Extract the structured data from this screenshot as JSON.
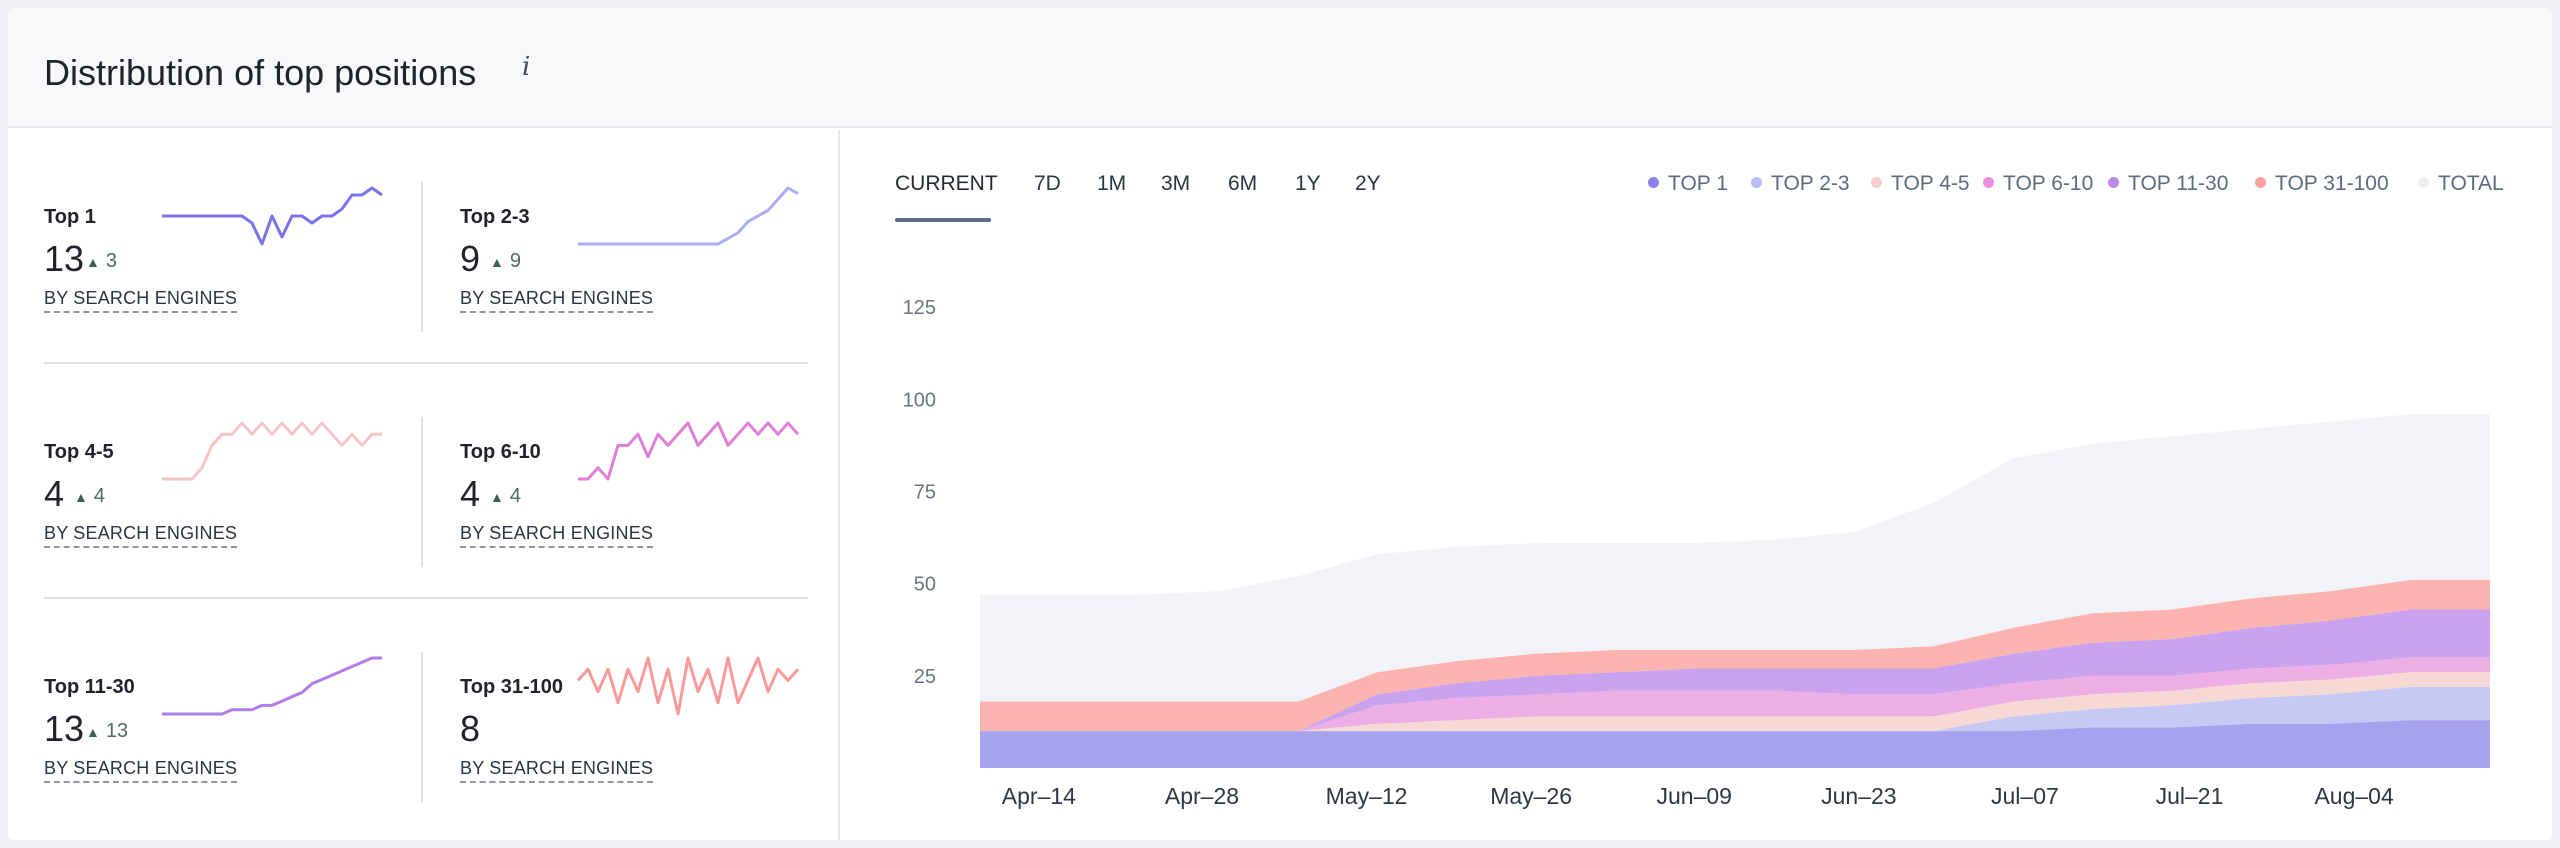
{
  "header": {
    "title": "Distribution of top positions",
    "info_symbol": "i"
  },
  "metrics": [
    {
      "name": "Top 1",
      "value": "13",
      "delta": "3",
      "has_delta": true,
      "link": "BY SEARCH ENGINES",
      "color": "#7b73e6"
    },
    {
      "name": "Top 2-3",
      "value": "9",
      "delta": "9",
      "has_delta": true,
      "link": "BY SEARCH ENGINES",
      "color": "#a8aef0"
    },
    {
      "name": "Top 4-5",
      "value": "4",
      "delta": "4",
      "has_delta": true,
      "link": "BY SEARCH ENGINES",
      "color": "#f5c4c4"
    },
    {
      "name": "Top 6-10",
      "value": "4",
      "delta": "4",
      "has_delta": true,
      "link": "BY SEARCH ENGINES",
      "color": "#e07fd6"
    },
    {
      "name": "Top 11-30",
      "value": "13",
      "delta": "13",
      "has_delta": true,
      "link": "BY SEARCH ENGINES",
      "color": "#b07ce6"
    },
    {
      "name": "Top 31-100",
      "value": "8",
      "delta": "",
      "has_delta": false,
      "link": "BY SEARCH ENGINES",
      "color": "#f79a9a"
    }
  ],
  "tabs": [
    {
      "label": "CURRENT",
      "active": true
    },
    {
      "label": "7D",
      "active": false
    },
    {
      "label": "1M",
      "active": false
    },
    {
      "label": "3M",
      "active": false
    },
    {
      "label": "6M",
      "active": false
    },
    {
      "label": "1Y",
      "active": false
    },
    {
      "label": "2Y",
      "active": false
    }
  ],
  "legend": [
    {
      "label": "TOP 1",
      "color": "#8a84ea"
    },
    {
      "label": "TOP 2-3",
      "color": "#b7bcf2"
    },
    {
      "label": "TOP 4-5",
      "color": "#f6d0cc"
    },
    {
      "label": "TOP 6-10",
      "color": "#e890dc"
    },
    {
      "label": "TOP 11-30",
      "color": "#bb8ae8"
    },
    {
      "label": "TOP 31-100",
      "color": "#f8a3a0"
    },
    {
      "label": "TOTAL",
      "color": "#eceef4"
    }
  ],
  "chart_data": {
    "type": "area",
    "stacked": true,
    "yticks": [
      25,
      50,
      75,
      100,
      125
    ],
    "ylim": [
      0,
      125
    ],
    "xlabels": [
      "Apr–14",
      "Apr–28",
      "May–12",
      "May–26",
      "Jun–09",
      "Jun–23",
      "Jul–07",
      "Jul–21",
      "Aug–04"
    ],
    "x": [
      "Apr-07",
      "Apr-14",
      "Apr-21",
      "Apr-28",
      "May-05",
      "May-12",
      "May-19",
      "May-26",
      "Jun-02",
      "Jun-09",
      "Jun-16",
      "Jun-23",
      "Jun-30",
      "Jul-07",
      "Jul-14",
      "Jul-21",
      "Jul-28",
      "Aug-04",
      "Aug-11",
      "Aug-18"
    ],
    "series": [
      {
        "name": "TOP 1",
        "color": "#a7a2f0",
        "values": [
          10,
          10,
          10,
          10,
          10,
          10,
          10,
          10,
          10,
          10,
          10,
          10,
          10,
          10,
          11,
          11,
          12,
          12,
          13,
          13
        ]
      },
      {
        "name": "TOP 2-3",
        "color": "#c5c9f4",
        "values": [
          0,
          0,
          0,
          0,
          0,
          0,
          0,
          0,
          0,
          0,
          0,
          0,
          0,
          4,
          5,
          6,
          7,
          8,
          9,
          9
        ]
      },
      {
        "name": "TOP 4-5",
        "color": "#f6d9d4",
        "values": [
          0,
          0,
          0,
          0,
          0,
          2,
          3,
          4,
          4,
          4,
          4,
          4,
          4,
          4,
          4,
          4,
          4,
          4,
          4,
          4
        ]
      },
      {
        "name": "TOP 6-10",
        "color": "#ecaee4",
        "values": [
          0,
          0,
          0,
          0,
          0,
          5,
          6,
          6,
          7,
          7,
          7,
          6,
          6,
          5,
          5,
          4,
          4,
          4,
          4,
          4
        ]
      },
      {
        "name": "TOP 11-30",
        "color": "#c9a3ee",
        "values": [
          0,
          0,
          0,
          0,
          0,
          3,
          4,
          5,
          5,
          6,
          6,
          7,
          7,
          8,
          9,
          10,
          11,
          12,
          13,
          13
        ]
      },
      {
        "name": "TOP 31-100",
        "color": "#fbb3b0",
        "values": [
          8,
          8,
          8,
          8,
          8,
          6,
          6,
          6,
          6,
          5,
          5,
          5,
          6,
          7,
          8,
          8,
          8,
          8,
          8,
          8
        ]
      },
      {
        "name": "TOTAL",
        "color": "#f2f3f8",
        "values": [
          47,
          47,
          47,
          48,
          52,
          58,
          60,
          61,
          61,
          61,
          62,
          64,
          72,
          84,
          88,
          90,
          92,
          94,
          96,
          96
        ]
      }
    ]
  },
  "sparklines": [
    [
      10,
      10,
      10,
      10,
      10,
      10,
      10,
      10,
      10,
      9,
      6,
      10,
      7,
      10,
      10,
      9,
      10,
      10,
      11,
      13,
      13,
      14,
      13
    ],
    [
      0,
      0,
      0,
      0,
      0,
      0,
      0,
      0,
      0,
      0,
      0,
      0,
      0,
      0,
      0,
      1,
      2,
      4,
      5,
      6,
      8,
      10,
      9
    ],
    [
      0,
      0,
      0,
      0,
      1,
      3,
      4,
      4,
      5,
      4,
      5,
      4,
      5,
      4,
      5,
      4,
      5,
      4,
      3,
      4,
      3,
      4,
      4
    ],
    [
      0,
      0,
      1,
      0,
      3,
      3,
      4,
      2,
      4,
      3,
      4,
      5,
      3,
      4,
      5,
      3,
      4,
      5,
      4,
      5,
      4,
      5,
      4
    ],
    [
      0,
      0,
      0,
      0,
      0,
      0,
      0,
      1,
      1,
      1,
      2,
      2,
      3,
      4,
      5,
      7,
      8,
      9,
      10,
      11,
      12,
      13,
      13
    ],
    [
      7,
      8,
      6,
      8,
      5,
      8,
      6,
      9,
      5,
      8,
      4,
      9,
      6,
      8,
      5,
      9,
      5,
      7,
      9,
      6,
      8,
      7,
      8
    ]
  ]
}
